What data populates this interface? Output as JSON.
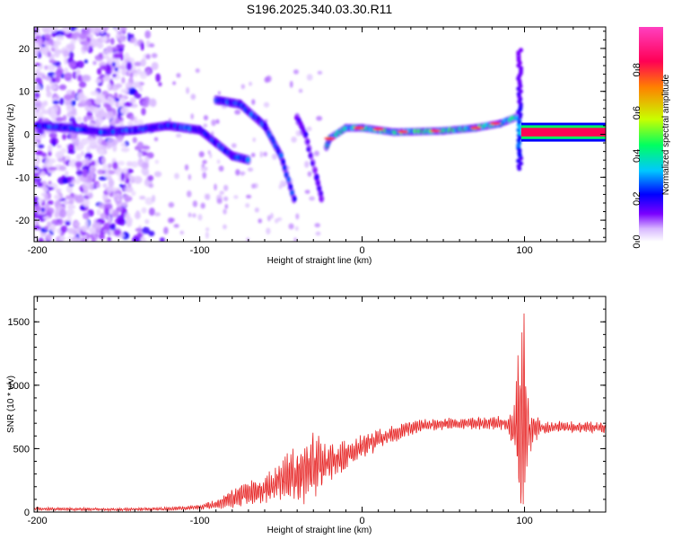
{
  "chart_data": [
    {
      "type": "heatmap",
      "title": "S196.2025.340.03.30.R11",
      "xlabel": "Height of straight line (km)",
      "ylabel": "Frequency (Hz)",
      "xlim": [
        -202,
        150
      ],
      "ylim": [
        -25,
        25
      ],
      "xticks": [
        -200,
        -100,
        0,
        100
      ],
      "yticks": [
        -20,
        -10,
        0,
        10,
        20
      ],
      "grid": false,
      "colorbar": {
        "label": "Normalized spectral amplitude",
        "range": [
          0,
          1
        ],
        "ticks": [
          0.0,
          0.2,
          0.4,
          0.6,
          0.8
        ],
        "colormap": [
          "#ffffff",
          "#d8b8ff",
          "#7a00ff",
          "#0000ff",
          "#00c8ff",
          "#00ff60",
          "#c8ff00",
          "#ff8000",
          "#ff0055",
          "#ff40c0"
        ]
      },
      "features": [
        {
          "name": "noise region",
          "x_range": [
            -202,
            -120
          ],
          "freq_range": [
            -25,
            25
          ],
          "level": 0.15
        },
        {
          "name": "main trace",
          "points": [
            [
              -200,
              2
            ],
            [
              -180,
              1.5
            ],
            [
              -160,
              0.5
            ],
            [
              -140,
              1
            ],
            [
              -120,
              2
            ],
            [
              -100,
              1
            ],
            [
              -90,
              -2
            ],
            [
              -80,
              -5
            ],
            [
              -70,
              -6
            ]
          ]
        },
        {
          "name": "descending trace A",
          "points": [
            [
              -90,
              8
            ],
            [
              -75,
              7
            ],
            [
              -60,
              2
            ],
            [
              -50,
              -5
            ],
            [
              -42,
              -15
            ]
          ]
        },
        {
          "name": "descending trace B",
          "points": [
            [
              -40,
              4
            ],
            [
              -35,
              0
            ],
            [
              -28,
              -10
            ],
            [
              -25,
              -15
            ]
          ]
        },
        {
          "name": "recovery trace",
          "points": [
            [
              -22,
              -3
            ],
            [
              -20,
              -1
            ],
            [
              -10,
              1.5
            ],
            [
              0,
              1.5
            ],
            [
              20,
              0.5
            ],
            [
              50,
              0.8
            ],
            [
              70,
              1.5
            ],
            [
              85,
              2.5
            ],
            [
              95,
              4
            ]
          ]
        },
        {
          "name": "spike",
          "x": 97,
          "freq_range": [
            -8,
            20
          ]
        },
        {
          "name": "steady tone",
          "x_range": [
            98,
            150
          ],
          "freq": 0.5,
          "level": 1.0
        }
      ]
    },
    {
      "type": "line",
      "xlabel": "Height of straight line (km)",
      "ylabel": "SNR (10 * v/v)",
      "xlim": [
        -202,
        150
      ],
      "ylim": [
        0,
        1700
      ],
      "xticks": [
        -200,
        -100,
        0,
        100
      ],
      "yticks": [
        0,
        500,
        1000,
        1500
      ],
      "grid": false,
      "series": [
        {
          "name": "SNR",
          "color": "#e62020",
          "envelope": [
            {
              "x": -200,
              "mean": 25,
              "amp": 15
            },
            {
              "x": -150,
              "mean": 20,
              "amp": 12
            },
            {
              "x": -120,
              "mean": 25,
              "amp": 15
            },
            {
              "x": -100,
              "mean": 40,
              "amp": 20
            },
            {
              "x": -90,
              "mean": 60,
              "amp": 40
            },
            {
              "x": -80,
              "mean": 110,
              "amp": 80
            },
            {
              "x": -70,
              "mean": 150,
              "amp": 100
            },
            {
              "x": -60,
              "mean": 180,
              "amp": 120
            },
            {
              "x": -50,
              "mean": 250,
              "amp": 180
            },
            {
              "x": -40,
              "mean": 300,
              "amp": 250
            },
            {
              "x": -30,
              "mean": 350,
              "amp": 300
            },
            {
              "x": -20,
              "mean": 380,
              "amp": 150
            },
            {
              "x": -10,
              "mean": 450,
              "amp": 120
            },
            {
              "x": 0,
              "mean": 520,
              "amp": 100
            },
            {
              "x": 10,
              "mean": 570,
              "amp": 90
            },
            {
              "x": 20,
              "mean": 620,
              "amp": 70
            },
            {
              "x": 30,
              "mean": 660,
              "amp": 60
            },
            {
              "x": 40,
              "mean": 690,
              "amp": 50
            },
            {
              "x": 60,
              "mean": 700,
              "amp": 50
            },
            {
              "x": 80,
              "mean": 700,
              "amp": 55
            },
            {
              "x": 90,
              "mean": 700,
              "amp": 60
            },
            {
              "x": 94,
              "mean": 650,
              "amp": 250
            },
            {
              "x": 97,
              "mean": 600,
              "amp": 900
            },
            {
              "x": 100,
              "mean": 800,
              "amp": 800
            },
            {
              "x": 103,
              "mean": 650,
              "amp": 200
            },
            {
              "x": 110,
              "mean": 670,
              "amp": 50
            },
            {
              "x": 130,
              "mean": 670,
              "amp": 50
            },
            {
              "x": 150,
              "mean": 670,
              "amp": 50
            }
          ]
        }
      ]
    }
  ]
}
